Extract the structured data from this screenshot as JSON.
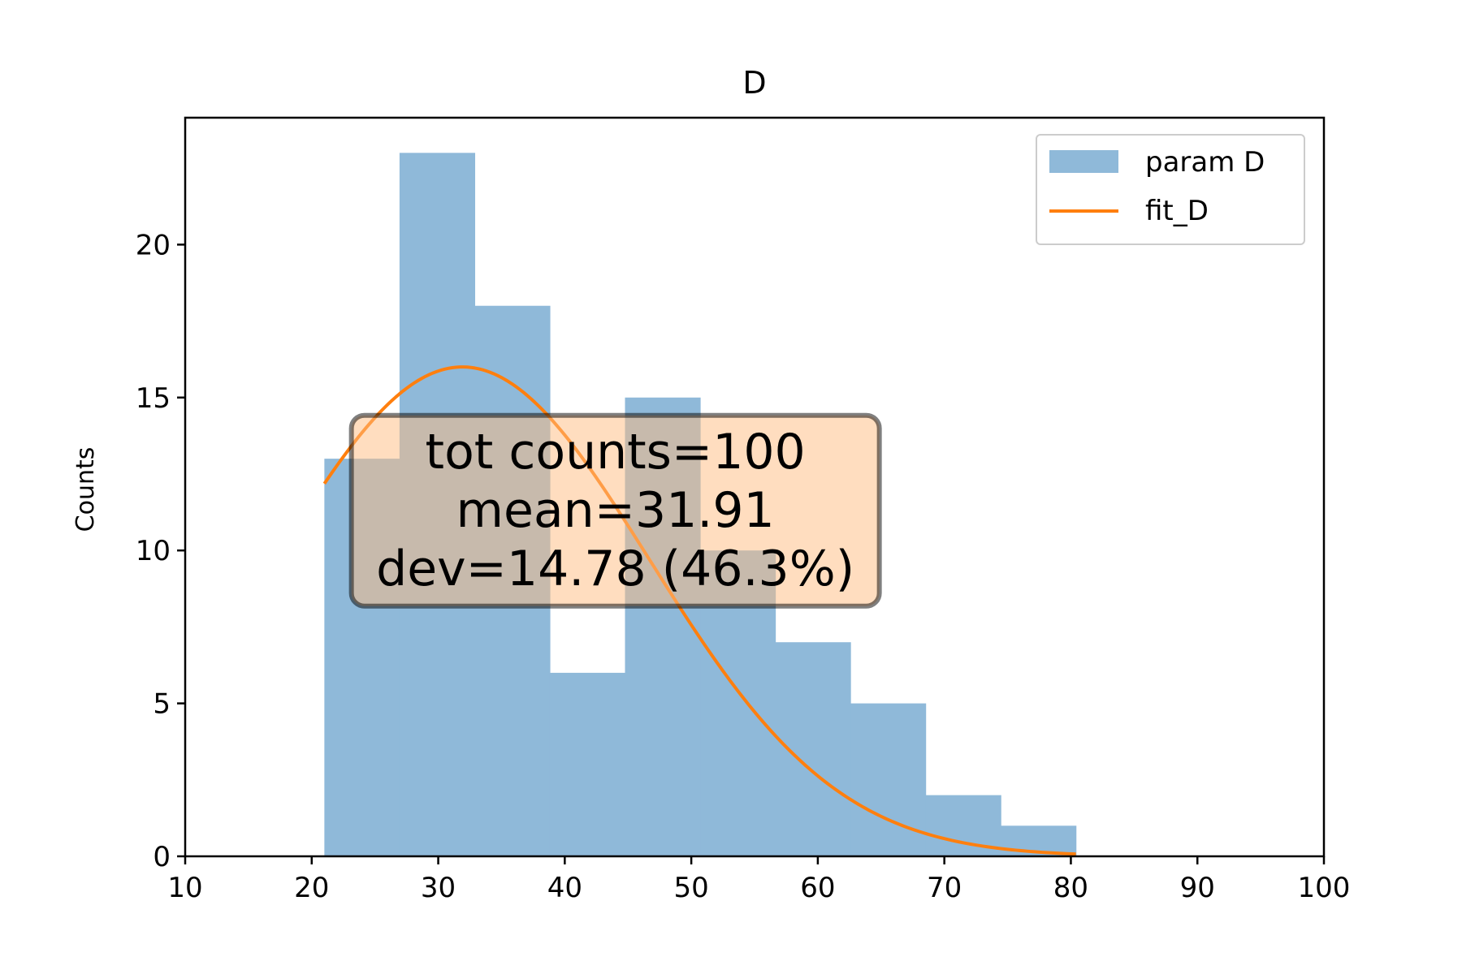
{
  "chart_data": {
    "type": "bar",
    "title": "D",
    "xlabel": "",
    "ylabel": "Counts",
    "xlim": [
      10,
      100
    ],
    "ylim": [
      0,
      24.15
    ],
    "xticks": [
      10,
      20,
      30,
      40,
      50,
      60,
      70,
      80,
      90,
      100
    ],
    "xtick_labels": [
      "10",
      "20",
      "30",
      "40",
      "50",
      "60",
      "70",
      "80",
      "90",
      "100"
    ],
    "yticks": [
      0,
      5,
      10,
      15,
      20
    ],
    "ytick_labels": [
      "0",
      "5",
      "10",
      "15",
      "20"
    ],
    "grid": false,
    "legend_position": "top-right",
    "series": [
      {
        "name": "param D",
        "kind": "histogram",
        "color": "#8fb9d9",
        "bin_edges": [
          21.0,
          26.94,
          32.88,
          38.82,
          44.76,
          50.7,
          56.64,
          62.58,
          68.52,
          74.46,
          80.4
        ],
        "counts": [
          13,
          23,
          18,
          6,
          15,
          10,
          7,
          5,
          2,
          1
        ]
      },
      {
        "name": "fit_D",
        "kind": "gaussian_fit",
        "color": "#ff7f0e",
        "mean": 31.91,
        "sigma": 14.78,
        "amplitude": 16.0,
        "x_range": [
          21.0,
          80.4
        ]
      }
    ],
    "annotation": {
      "lines": [
        "tot counts=100",
        "mean=31.91",
        "dev=14.78 (46.3%)"
      ],
      "box_color": "#ffbb80",
      "center": [
        44,
        11.3
      ]
    }
  }
}
